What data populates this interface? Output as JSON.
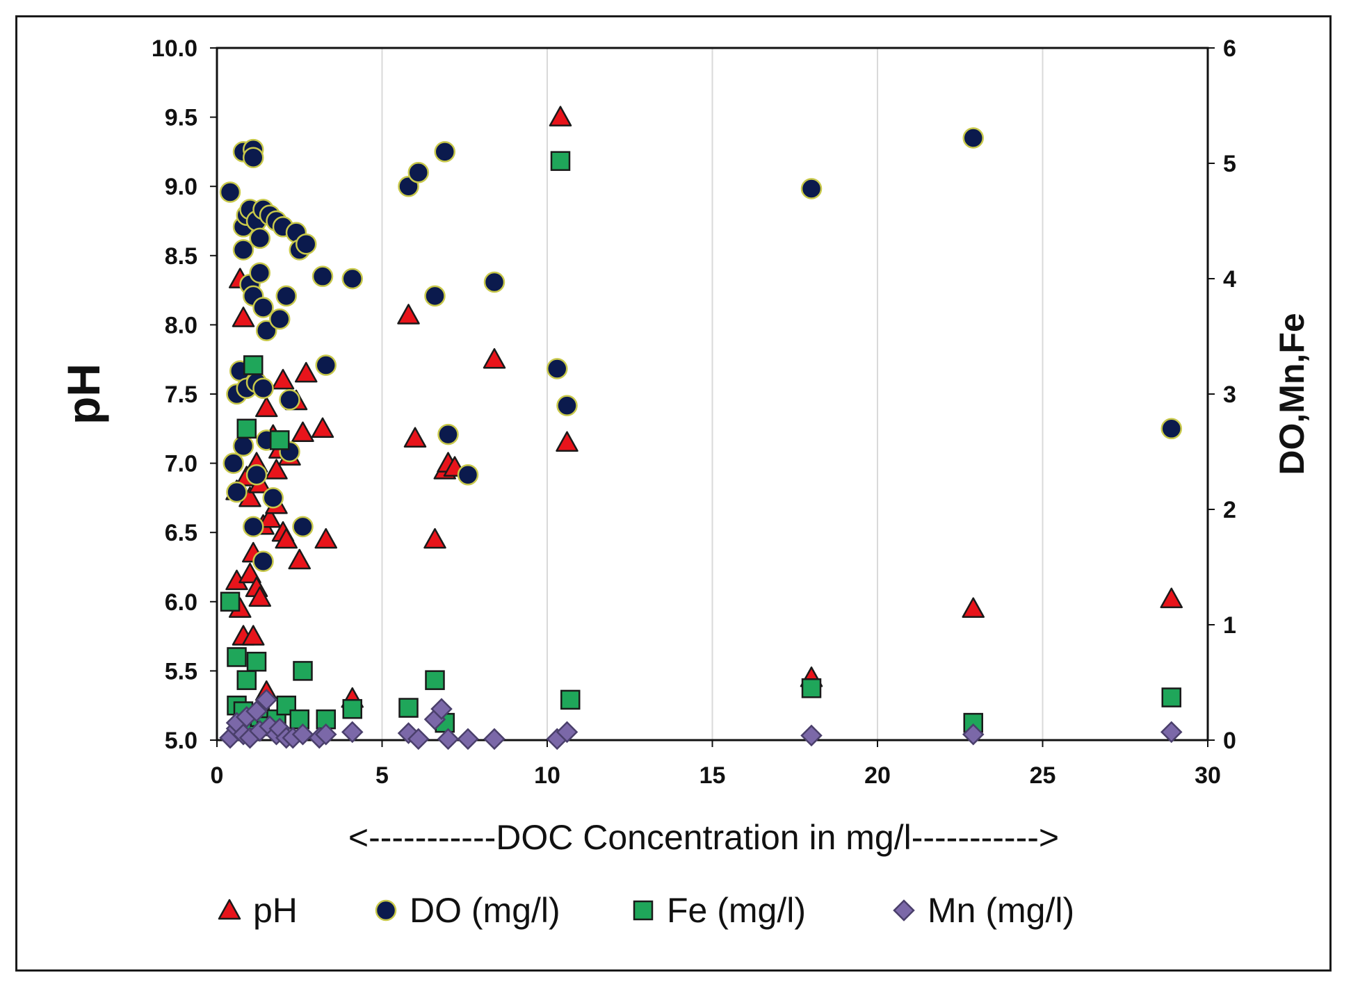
{
  "chart_data": {
    "type": "scatter",
    "title": "",
    "xlabel": "<-----------DOC Concentration in mg/l----------->",
    "ylabel": "pH",
    "y2label": "DO,Mn,Fe",
    "xlim": [
      0,
      30
    ],
    "ylim": [
      5.0,
      10.0
    ],
    "y2lim": [
      0,
      6
    ],
    "x_ticks": [
      "0",
      "5",
      "10",
      "15",
      "20",
      "25",
      "30"
    ],
    "y_ticks": [
      "5.0",
      "5.5",
      "6.0",
      "6.5",
      "7.0",
      "7.5",
      "8.0",
      "8.5",
      "9.0",
      "9.5",
      "10.0"
    ],
    "y2_ticks": [
      "0",
      "1",
      "2",
      "3",
      "4",
      "5",
      "6"
    ],
    "grid": "vertical",
    "legend_position": "bottom",
    "series": [
      {
        "name": "pH",
        "axis": "left",
        "marker": "triangle",
        "color": "#e8141b",
        "points": [
          [
            0.7,
            8.33
          ],
          [
            0.8,
            8.05
          ],
          [
            0.6,
            6.15
          ],
          [
            0.7,
            5.95
          ],
          [
            0.8,
            5.75
          ],
          [
            1.1,
            5.75
          ],
          [
            1.0,
            6.2
          ],
          [
            1.1,
            6.35
          ],
          [
            1.2,
            6.1
          ],
          [
            1.3,
            6.03
          ],
          [
            1.5,
            5.35
          ],
          [
            1.4,
            6.55
          ],
          [
            1.6,
            6.6
          ],
          [
            1.8,
            6.7
          ],
          [
            2.0,
            6.5
          ],
          [
            2.1,
            6.45
          ],
          [
            2.5,
            6.3
          ],
          [
            0.6,
            6.8
          ],
          [
            0.9,
            6.9
          ],
          [
            1.0,
            6.75
          ],
          [
            1.2,
            7.0
          ],
          [
            1.3,
            6.85
          ],
          [
            1.5,
            7.4
          ],
          [
            1.7,
            7.2
          ],
          [
            1.9,
            7.1
          ],
          [
            1.8,
            6.95
          ],
          [
            2.0,
            7.6
          ],
          [
            2.2,
            7.05
          ],
          [
            2.4,
            7.45
          ],
          [
            2.6,
            7.22
          ],
          [
            2.7,
            7.65
          ],
          [
            3.2,
            7.25
          ],
          [
            3.3,
            6.45
          ],
          [
            4.1,
            5.3
          ],
          [
            5.8,
            8.07
          ],
          [
            6.0,
            7.18
          ],
          [
            6.6,
            6.45
          ],
          [
            6.9,
            6.95
          ],
          [
            7.0,
            7.0
          ],
          [
            7.2,
            6.97
          ],
          [
            8.4,
            7.75
          ],
          [
            10.4,
            9.5
          ],
          [
            10.6,
            7.15
          ],
          [
            18.0,
            5.45
          ],
          [
            22.9,
            5.95
          ],
          [
            28.9,
            6.02
          ]
        ]
      },
      {
        "name": "DO (mg/l)",
        "axis": "right",
        "marker": "circle",
        "color": "#0b1a4d",
        "points": [
          [
            0.4,
            4.75
          ],
          [
            0.8,
            5.1
          ],
          [
            1.1,
            5.12
          ],
          [
            1.1,
            5.05
          ],
          [
            0.8,
            4.45
          ],
          [
            0.9,
            4.55
          ],
          [
            1.0,
            4.6
          ],
          [
            1.2,
            4.5
          ],
          [
            1.4,
            4.6
          ],
          [
            1.6,
            4.55
          ],
          [
            1.8,
            4.5
          ],
          [
            2.0,
            4.45
          ],
          [
            2.4,
            4.4
          ],
          [
            2.5,
            4.25
          ],
          [
            2.7,
            4.3
          ],
          [
            0.8,
            4.25
          ],
          [
            1.3,
            4.35
          ],
          [
            1.0,
            3.95
          ],
          [
            1.3,
            4.05
          ],
          [
            1.1,
            3.85
          ],
          [
            1.4,
            3.75
          ],
          [
            1.5,
            3.55
          ],
          [
            1.9,
            3.65
          ],
          [
            2.1,
            3.85
          ],
          [
            3.2,
            4.02
          ],
          [
            4.1,
            4.0
          ],
          [
            0.7,
            3.2
          ],
          [
            0.6,
            3.0
          ],
          [
            0.9,
            3.05
          ],
          [
            1.2,
            3.1
          ],
          [
            1.4,
            3.05
          ],
          [
            2.2,
            2.95
          ],
          [
            3.3,
            3.25
          ],
          [
            0.5,
            2.4
          ],
          [
            0.8,
            2.55
          ],
          [
            1.2,
            2.3
          ],
          [
            1.5,
            2.6
          ],
          [
            2.2,
            2.5
          ],
          [
            0.6,
            2.15
          ],
          [
            1.1,
            1.85
          ],
          [
            1.7,
            2.1
          ],
          [
            1.4,
            1.55
          ],
          [
            2.6,
            1.85
          ],
          [
            5.8,
            4.8
          ],
          [
            6.1,
            4.92
          ],
          [
            6.9,
            5.1
          ],
          [
            6.6,
            3.85
          ],
          [
            8.4,
            3.97
          ],
          [
            7.0,
            2.65
          ],
          [
            7.6,
            2.3
          ],
          [
            10.3,
            3.22
          ],
          [
            10.6,
            2.9
          ],
          [
            18.0,
            4.78
          ],
          [
            22.9,
            5.22
          ],
          [
            28.9,
            2.7
          ]
        ]
      },
      {
        "name": "Fe (mg/l)",
        "axis": "right",
        "marker": "square",
        "color": "#1fa65a",
        "points": [
          [
            0.4,
            1.2
          ],
          [
            0.6,
            0.72
          ],
          [
            0.9,
            0.52
          ],
          [
            1.2,
            0.68
          ],
          [
            1.1,
            3.25
          ],
          [
            0.9,
            2.7
          ],
          [
            1.9,
            2.6
          ],
          [
            0.6,
            0.3
          ],
          [
            0.8,
            0.25
          ],
          [
            1.0,
            0.15
          ],
          [
            1.3,
            0.2
          ],
          [
            1.5,
            0.12
          ],
          [
            1.8,
            0.18
          ],
          [
            2.1,
            0.3
          ],
          [
            2.5,
            0.18
          ],
          [
            2.6,
            0.6
          ],
          [
            3.3,
            0.18
          ],
          [
            4.1,
            0.27
          ],
          [
            5.8,
            0.28
          ],
          [
            6.6,
            0.52
          ],
          [
            6.9,
            0.15
          ],
          [
            10.4,
            5.02
          ],
          [
            10.7,
            0.35
          ],
          [
            18.0,
            0.45
          ],
          [
            22.9,
            0.15
          ],
          [
            28.9,
            0.37
          ]
        ]
      },
      {
        "name": "Mn (mg/l)",
        "axis": "right",
        "marker": "diamond",
        "color": "#7b68a8",
        "points": [
          [
            0.4,
            0.02
          ],
          [
            0.6,
            0.1
          ],
          [
            0.6,
            0.15
          ],
          [
            0.8,
            0.05
          ],
          [
            0.9,
            0.2
          ],
          [
            1.0,
            0.02
          ],
          [
            1.2,
            0.25
          ],
          [
            1.3,
            0.08
          ],
          [
            1.5,
            0.35
          ],
          [
            1.6,
            0.12
          ],
          [
            1.8,
            0.05
          ],
          [
            1.9,
            0.1
          ],
          [
            2.1,
            0.02
          ],
          [
            2.3,
            0.02
          ],
          [
            2.6,
            0.05
          ],
          [
            3.1,
            0.02
          ],
          [
            3.3,
            0.05
          ],
          [
            4.1,
            0.07
          ],
          [
            5.8,
            0.06
          ],
          [
            6.1,
            0.01
          ],
          [
            6.6,
            0.18
          ],
          [
            6.8,
            0.27
          ],
          [
            7.0,
            0.01
          ],
          [
            7.6,
            0.01
          ],
          [
            8.4,
            0.01
          ],
          [
            10.3,
            0.01
          ],
          [
            10.6,
            0.07
          ],
          [
            18.0,
            0.04
          ],
          [
            22.9,
            0.05
          ],
          [
            28.9,
            0.07
          ]
        ]
      }
    ]
  }
}
